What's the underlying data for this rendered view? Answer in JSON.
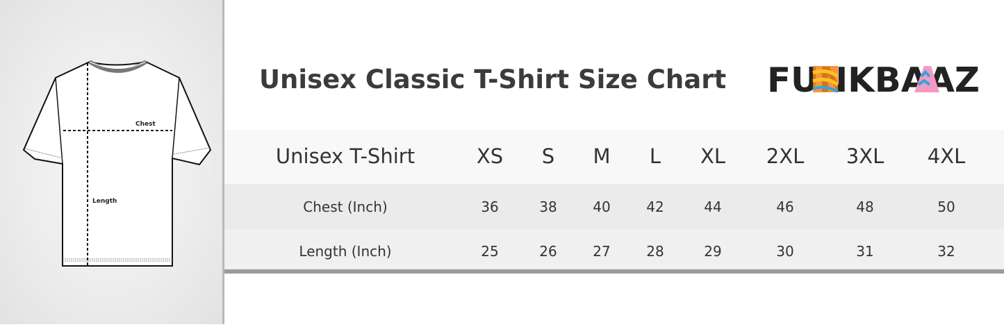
{
  "title": "Unisex Classic T-Shirt Size Chart",
  "brand": {
    "logo_text": "FUNKBAAZ",
    "colors": {
      "dark": "#222222",
      "orange": "#f58220",
      "yellow": "#fcc219",
      "blue": "#29a8e0",
      "pink": "#f49ac1"
    }
  },
  "diagram": {
    "chest_label": "Chest",
    "length_label": "Length"
  },
  "table": {
    "header": {
      "label": "Unisex T-Shirt",
      "sizes": [
        "XS",
        "S",
        "M",
        "L",
        "XL",
        "2XL",
        "3XL",
        "4XL"
      ]
    },
    "rows": [
      {
        "label": "Chest (Inch)",
        "values": [
          "36",
          "38",
          "40",
          "42",
          "44",
          "46",
          "48",
          "50"
        ]
      },
      {
        "label": "Length (Inch)",
        "values": [
          "25",
          "26",
          "27",
          "28",
          "29",
          "30",
          "31",
          "32"
        ]
      }
    ]
  }
}
